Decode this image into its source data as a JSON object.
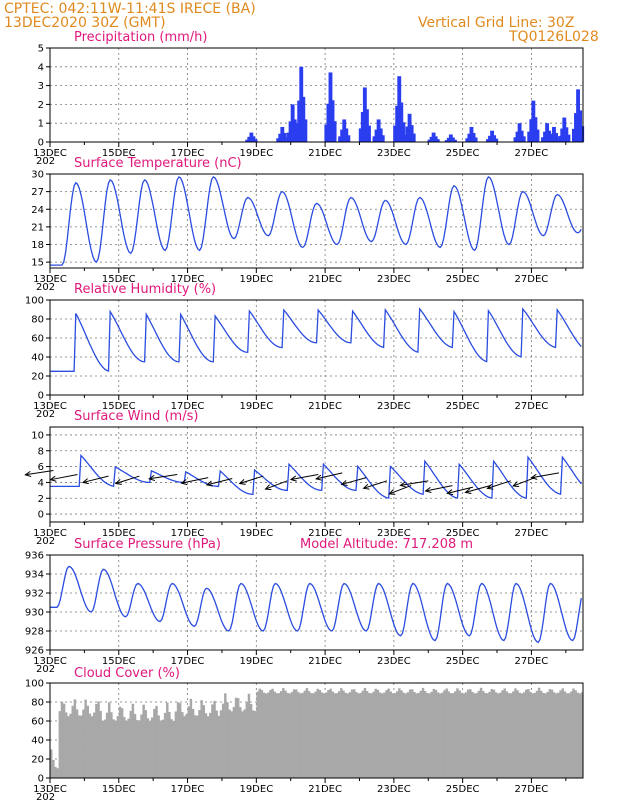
{
  "header": {
    "line1": "CPTEC:   042:11W-11:41S   IRECE (BA)",
    "line2": "13DEC2020 30Z (GMT)",
    "grid_note": "Vertical Grid Line: 30Z",
    "code": "TQ0126L028"
  },
  "colors": {
    "line": "#2a4ce0",
    "bars": "#2a3ef0",
    "cloud": "#a8a8a8",
    "title": "#e0187c",
    "header": "#e08a1e"
  },
  "x_axis": {
    "days": 15.5,
    "tick_labels": [
      "13DEC",
      "15DEC",
      "17DEC",
      "19DEC",
      "21DEC",
      "23DEC",
      "25DEC",
      "27DEC"
    ],
    "tick_days": [
      0,
      2,
      4,
      6,
      8,
      10,
      12,
      14
    ],
    "year_stub": "202"
  },
  "chart_data": [
    {
      "id": "precip",
      "type": "bar",
      "title": "Precipitation (mm/h)",
      "ylim": [
        0,
        5
      ],
      "yticks": [
        0,
        1,
        2,
        3,
        4,
        5
      ],
      "spikes": [
        [
          5.8,
          0.5
        ],
        [
          6.7,
          0.8
        ],
        [
          7.0,
          2.0
        ],
        [
          7.25,
          4.0
        ],
        [
          8.1,
          3.7
        ],
        [
          8.5,
          1.2
        ],
        [
          9.1,
          2.9
        ],
        [
          9.5,
          1.2
        ],
        [
          10.1,
          3.5
        ],
        [
          10.4,
          1.5
        ],
        [
          11.1,
          0.5
        ],
        [
          11.6,
          0.4
        ],
        [
          12.2,
          0.8
        ],
        [
          12.8,
          0.6
        ],
        [
          13.6,
          1.0
        ],
        [
          14.0,
          2.2
        ],
        [
          14.4,
          1.0
        ],
        [
          14.6,
          0.8
        ],
        [
          14.9,
          1.3
        ],
        [
          15.3,
          2.8
        ]
      ]
    },
    {
      "id": "temp",
      "type": "line",
      "title": "Surface Temperature (nC)",
      "ylim": [
        14,
        30
      ],
      "yticks": [
        15,
        18,
        21,
        24,
        27,
        30
      ],
      "daily": {
        "min": [
          14.5,
          15.0,
          16.5,
          17.0,
          17.0,
          19.0,
          19.5,
          17.5,
          18.0,
          18.5,
          18.0,
          17.5,
          17.0,
          18.0,
          19.5,
          20.0
        ],
        "max": [
          28.5,
          29.0,
          29.0,
          29.5,
          29.5,
          26.0,
          27.0,
          25.0,
          26.0,
          25.5,
          26.0,
          28.0,
          29.5,
          27.0,
          26.5,
          24.0
        ]
      }
    },
    {
      "id": "rh",
      "type": "line",
      "title": "Relative Humidity (%)",
      "ylim": [
        0,
        100
      ],
      "yticks": [
        0,
        20,
        40,
        60,
        80,
        100
      ],
      "daily": {
        "min": [
          25,
          25,
          35,
          35,
          35,
          45,
          50,
          55,
          55,
          50,
          45,
          50,
          35,
          40,
          50,
          45
        ],
        "max": [
          100,
          100,
          100,
          100,
          95,
          100,
          100,
          100,
          100,
          100,
          100,
          100,
          100,
          100,
          100,
          95
        ]
      }
    },
    {
      "id": "wind",
      "type": "line",
      "title": "Surface Wind (m/s)",
      "ylim": [
        -1,
        11
      ],
      "yticks": [
        0,
        2,
        4,
        6,
        8,
        10
      ],
      "daily": {
        "min": [
          3.5,
          3.5,
          4.0,
          4.0,
          3.5,
          2.5,
          3.0,
          3.0,
          3.0,
          2.0,
          2.5,
          2.0,
          2.0,
          2.0,
          2.5,
          2.5
        ],
        "max": [
          8.5,
          6.5,
          6.0,
          6.0,
          6.5,
          6.5,
          7.5,
          7.5,
          7.5,
          7.0,
          8.0,
          7.5,
          8.0,
          8.5,
          8.5,
          7.0
        ]
      },
      "vectors": [
        [
          0.1,
          5.5
        ],
        [
          0.8,
          5.0
        ],
        [
          1.7,
          4.8
        ],
        [
          2.6,
          4.8
        ],
        [
          3.7,
          5.0
        ],
        [
          4.6,
          4.6
        ],
        [
          5.3,
          4.5
        ],
        [
          6.2,
          4.8
        ],
        [
          6.9,
          4.2
        ],
        [
          7.8,
          5.0
        ],
        [
          8.5,
          5.2
        ],
        [
          9.2,
          4.6
        ],
        [
          9.8,
          4.2
        ],
        [
          10.5,
          3.6
        ],
        [
          11.0,
          4.2
        ],
        [
          11.7,
          3.6
        ],
        [
          12.3,
          3.4
        ],
        [
          12.8,
          3.6
        ],
        [
          13.4,
          4.2
        ],
        [
          14.1,
          4.6
        ],
        [
          14.8,
          5.2
        ]
      ]
    },
    {
      "id": "pres",
      "type": "line",
      "title": "Surface Pressure (hPa)",
      "extra_label": "Model Altitude: 717.208 m",
      "ylim": [
        926,
        936
      ],
      "yticks": [
        926,
        928,
        930,
        932,
        934,
        936
      ],
      "daily": {
        "max": [
          934.8,
          934.5,
          933.0,
          933.0,
          932.5,
          933.0,
          933.0,
          933.0,
          933.0,
          933.0,
          933.0,
          933.0,
          933.0,
          933.0,
          933.0,
          932.5
        ],
        "min": [
          930.5,
          930.0,
          929.5,
          929.0,
          928.5,
          928.0,
          928.0,
          928.0,
          928.0,
          928.0,
          927.5,
          927.0,
          927.5,
          927.0,
          926.8,
          927.0
        ]
      }
    },
    {
      "id": "cloud",
      "type": "bar",
      "title": "Cloud Cover (%)",
      "ylim": [
        0,
        100
      ],
      "yticks": [
        0,
        20,
        40,
        60,
        80,
        100
      ],
      "segments": [
        [
          0,
          0.2,
          30
        ],
        [
          0.2,
          1.5,
          85
        ],
        [
          1.5,
          2.6,
          80
        ],
        [
          2.6,
          3.6,
          80
        ],
        [
          3.6,
          4.9,
          85
        ],
        [
          4.9,
          6.0,
          90
        ],
        [
          6.0,
          7.5,
          95
        ],
        [
          7.5,
          15.5,
          95
        ]
      ]
    }
  ]
}
